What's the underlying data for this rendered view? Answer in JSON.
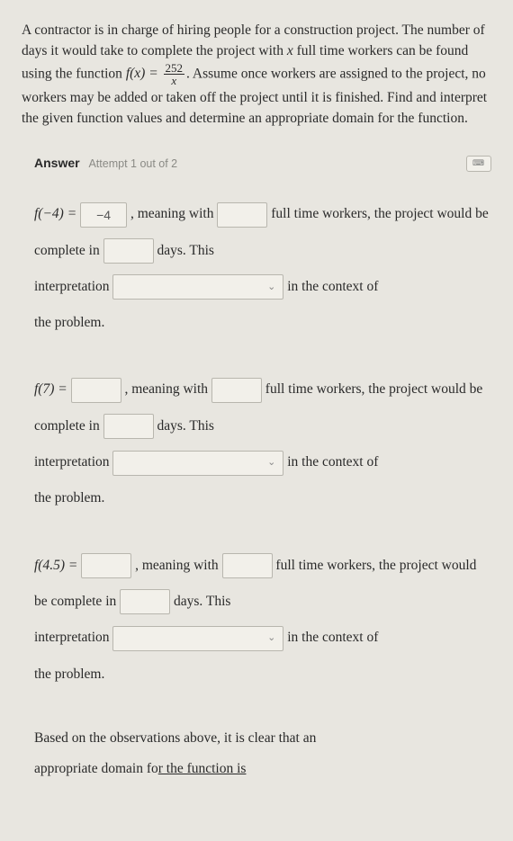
{
  "problem": {
    "line1_a": "A contractor is in charge of hiring people for a construction project. The number of days it would take to complete the project with ",
    "var_x": "x",
    "line1_b": " full time workers can be found using the function ",
    "fn_lhs": "f(x) = ",
    "frac_num": "252",
    "frac_den": "x",
    "line1_c": ". Assume once workers are assigned to the project, no workers may be added or taken off the project until it is finished. Find and interpret the given function values and determine an appropriate domain for the function."
  },
  "answer_header": {
    "label": "Answer",
    "attempt": "Attempt 1 out of 2"
  },
  "q1": {
    "fn": "f(−4) =",
    "val": "−4",
    "t1": ", meaning with",
    "workers": "",
    "t2": "full time workers,",
    "t3": "the project would be complete in",
    "days": "",
    "t4": "days. This",
    "t5": "interpretation",
    "t6": "in the context of",
    "t7": "the problem."
  },
  "q2": {
    "fn": "f(7) =",
    "val": "",
    "t1": ", meaning with",
    "workers": "",
    "t2": "full time workers,",
    "t3": "the project would be complete in",
    "days": "",
    "t4": "days. This",
    "t5": "interpretation",
    "t6": "in the context of",
    "t7": "the problem."
  },
  "q3": {
    "fn": "f(4.5) =",
    "val": "",
    "t1": ", meaning with",
    "workers": "",
    "t2": "full time workers,",
    "t3": "the project would be complete in",
    "days": "",
    "t4": "days. This",
    "t5": "interpretation",
    "t6": "in the context of",
    "t7": "the problem."
  },
  "final": {
    "line1": "Based on the observations above, it is clear that an",
    "line2a": "appropriate domain fo",
    "line2b": "r the function is"
  }
}
